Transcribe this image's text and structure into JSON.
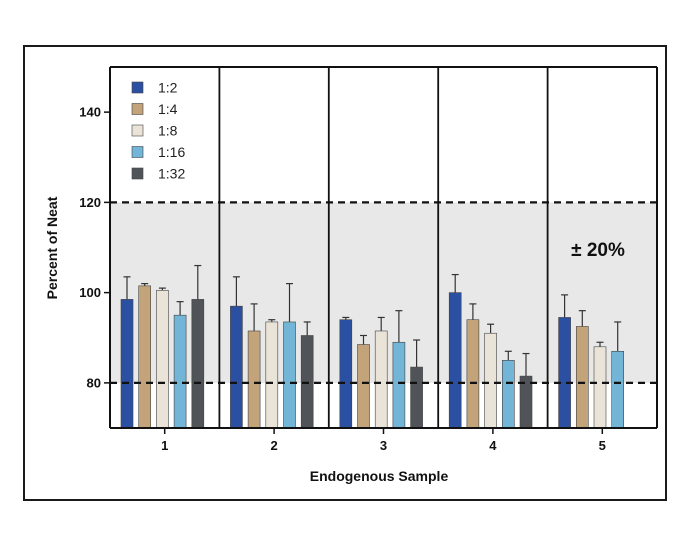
{
  "chart_data": {
    "type": "bar",
    "xlabel": "Endogenous Sample",
    "ylabel": "Percent of Neat",
    "ylim": [
      70,
      150
    ],
    "yticks": [
      80,
      100,
      120,
      140
    ],
    "categories": [
      "1",
      "2",
      "3",
      "4",
      "5"
    ],
    "series": [
      {
        "name": "1:2",
        "color": "#2b50a2",
        "values": [
          98.5,
          97.0,
          94.0,
          100.0,
          94.5
        ],
        "errors": [
          5.0,
          6.5,
          0.5,
          4.0,
          5.0
        ]
      },
      {
        "name": "1:4",
        "color": "#c2a37a",
        "values": [
          101.5,
          91.5,
          88.5,
          94.0,
          92.5
        ],
        "errors": [
          0.5,
          6.0,
          2.0,
          3.5,
          3.5
        ]
      },
      {
        "name": "1:8",
        "color": "#eae4d8",
        "values": [
          100.5,
          93.5,
          91.5,
          91.0,
          88.0
        ],
        "errors": [
          0.5,
          0.5,
          3.0,
          2.0,
          1.0
        ]
      },
      {
        "name": "1:16",
        "color": "#72b5d6",
        "values": [
          95.0,
          93.5,
          89.0,
          85.0,
          87.0
        ],
        "errors": [
          3.0,
          8.5,
          7.0,
          2.0,
          6.5
        ]
      },
      {
        "name": "1:32",
        "color": "#505357",
        "values": [
          98.5,
          90.5,
          83.5,
          81.5,
          null
        ],
        "errors": [
          7.5,
          3.0,
          6.0,
          5.0,
          null
        ]
      }
    ],
    "band": {
      "low": 80,
      "high": 120,
      "label": "± 20%",
      "color": "#e8e8e8"
    },
    "legend_position": "top-left",
    "grid": false
  }
}
